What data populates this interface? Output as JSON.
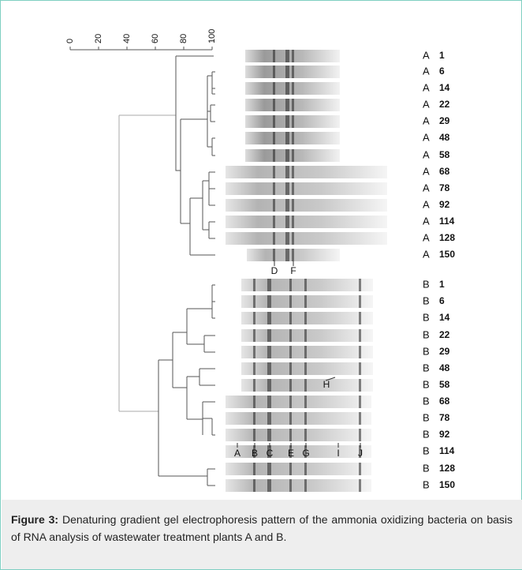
{
  "scale": {
    "ticks": [
      0,
      20,
      40,
      60,
      80,
      100
    ]
  },
  "lanes": [
    {
      "group": "A",
      "number": "1"
    },
    {
      "group": "A",
      "number": "6"
    },
    {
      "group": "A",
      "number": "14"
    },
    {
      "group": "A",
      "number": "22"
    },
    {
      "group": "A",
      "number": "29"
    },
    {
      "group": "A",
      "number": "48"
    },
    {
      "group": "A",
      "number": "58"
    },
    {
      "group": "A",
      "number": "68"
    },
    {
      "group": "A",
      "number": "78"
    },
    {
      "group": "A",
      "number": "92"
    },
    {
      "group": "A",
      "number": "114"
    },
    {
      "group": "A",
      "number": "128"
    },
    {
      "group": "A",
      "number": "150"
    },
    {
      "group": "B",
      "number": "1"
    },
    {
      "group": "B",
      "number": "6"
    },
    {
      "group": "B",
      "number": "14"
    },
    {
      "group": "B",
      "number": "22"
    },
    {
      "group": "B",
      "number": "29"
    },
    {
      "group": "B",
      "number": "48"
    },
    {
      "group": "B",
      "number": "58"
    },
    {
      "group": "B",
      "number": "68"
    },
    {
      "group": "B",
      "number": "78"
    },
    {
      "group": "B",
      "number": "92"
    },
    {
      "group": "B",
      "number": "114"
    },
    {
      "group": "B",
      "number": "128"
    },
    {
      "group": "B",
      "number": "150"
    }
  ],
  "markers_a": [
    "D",
    "F"
  ],
  "markers_b": [
    "A",
    "B",
    "C",
    "E",
    "G",
    "I",
    "J"
  ],
  "marker_h": "H",
  "caption": {
    "label": "Figure 3:",
    "text": "Denaturing gradient gel electrophoresis pattern of the ammonia oxidizing bacteria on basis of RNA analysis of wastewater treatment plants A and B."
  }
}
